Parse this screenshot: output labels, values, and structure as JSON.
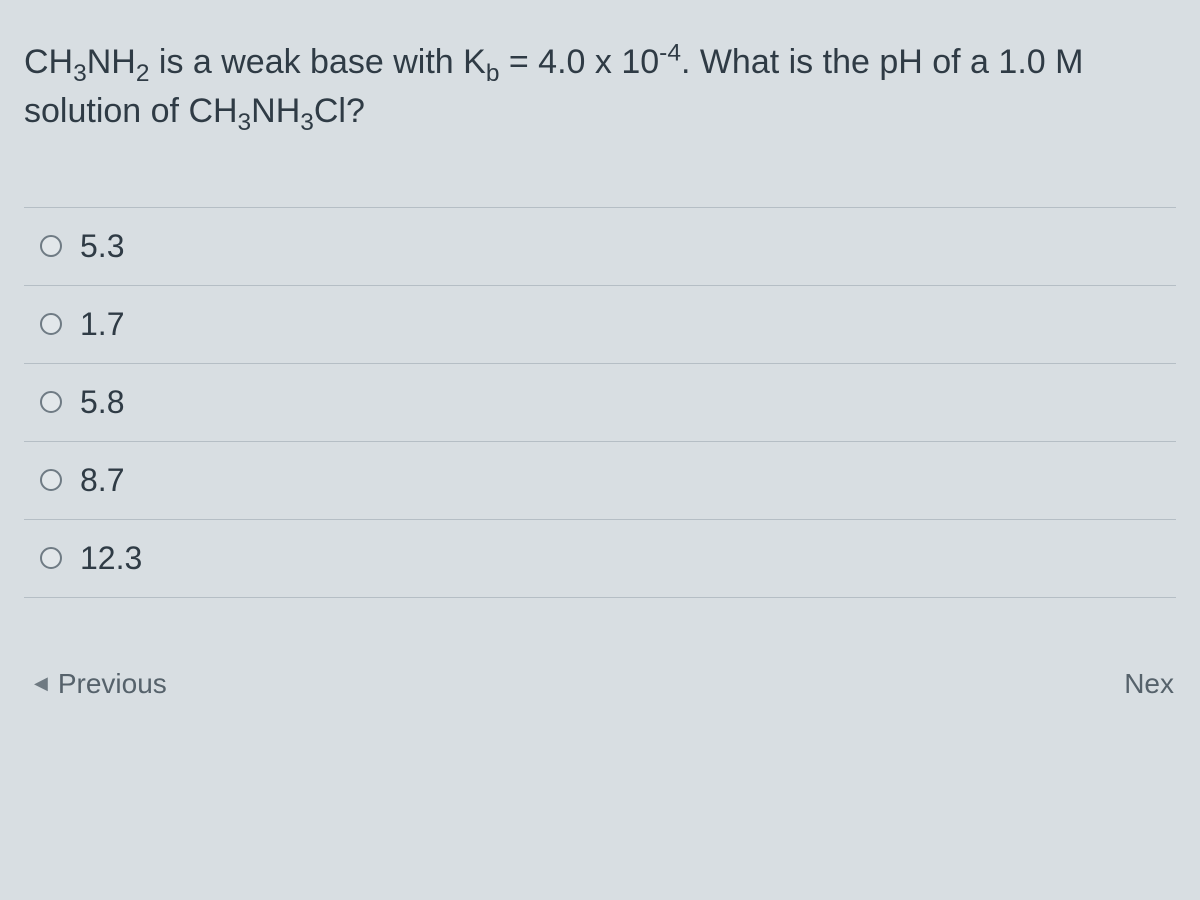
{
  "question": {
    "line1_pre": "CH",
    "line1_sub1": "3",
    "line1_mid1": "NH",
    "line1_sub2": "2",
    "line1_mid2": " is a weak base with K",
    "line1_sub3": "b",
    "line1_mid3": " = 4.0 x 10",
    "line1_sup1": "-4",
    "line1_mid4": ". What is the pH of a 1.0 M",
    "line2_pre": "solution of CH",
    "line2_sub1": "3",
    "line2_mid1": "NH",
    "line2_sub2": "3",
    "line2_mid2": "Cl?"
  },
  "answers": [
    {
      "label": "5.3"
    },
    {
      "label": "1.7"
    },
    {
      "label": "5.8"
    },
    {
      "label": "8.7"
    },
    {
      "label": "12.3"
    }
  ],
  "nav": {
    "previous": "Previous",
    "next": "Nex"
  },
  "colors": {
    "background": "#d8dee2",
    "text": "#2f3b45",
    "border": "#b5bec5",
    "radio_border": "#6f7b84",
    "nav_text": "#56626b"
  }
}
